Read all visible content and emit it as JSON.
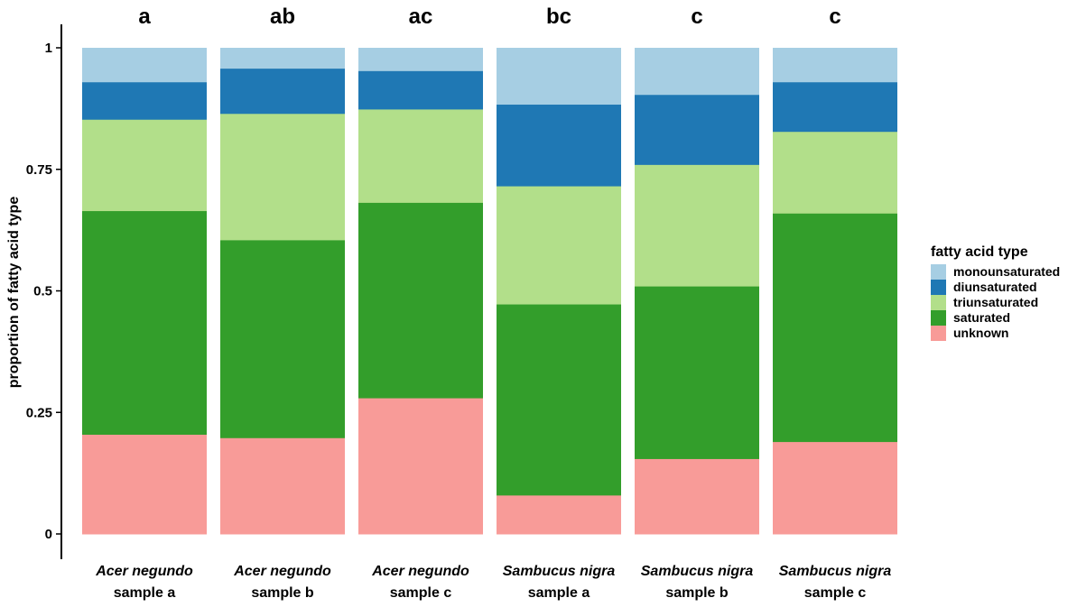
{
  "chart_data": {
    "type": "bar",
    "stacked": true,
    "ylabel": "proportion of fatty acid type",
    "ylim": [
      0,
      1
    ],
    "yticks": [
      0,
      0.25,
      0.5,
      0.75,
      1
    ],
    "ytick_labels": [
      "0",
      "0.25",
      "0.5",
      "0.75",
      "1"
    ],
    "categories": [
      {
        "species": "Acer negundo",
        "sample": "sample a",
        "significance": "a"
      },
      {
        "species": "Acer negundo",
        "sample": "sample b",
        "significance": "ab"
      },
      {
        "species": "Acer negundo",
        "sample": "sample c",
        "significance": "ac"
      },
      {
        "species": "Sambucus nigra",
        "sample": "sample a",
        "significance": "bc"
      },
      {
        "species": "Sambucus nigra",
        "sample": "sample b",
        "significance": "c"
      },
      {
        "species": "Sambucus nigra",
        "sample": "sample c",
        "significance": "c"
      }
    ],
    "series": [
      {
        "name": "unknown",
        "color": "#f89b98",
        "values": [
          0.205,
          0.198,
          0.28,
          0.08,
          0.155,
          0.19
        ]
      },
      {
        "name": "saturated",
        "color": "#339e2b",
        "values": [
          0.46,
          0.407,
          0.402,
          0.393,
          0.355,
          0.47
        ]
      },
      {
        "name": "triunsaturated",
        "color": "#b2df8a",
        "values": [
          0.188,
          0.26,
          0.192,
          0.243,
          0.25,
          0.168
        ]
      },
      {
        "name": "diunsaturated",
        "color": "#1f78b4",
        "values": [
          0.077,
          0.093,
          0.079,
          0.168,
          0.144,
          0.102
        ]
      },
      {
        "name": "monounsaturated",
        "color": "#a6cee3",
        "values": [
          0.07,
          0.042,
          0.047,
          0.116,
          0.096,
          0.07
        ]
      }
    ],
    "legend": {
      "title": "fatty acid type",
      "position": "right",
      "order": [
        "monounsaturated",
        "diunsaturated",
        "triunsaturated",
        "saturated",
        "unknown"
      ]
    }
  }
}
